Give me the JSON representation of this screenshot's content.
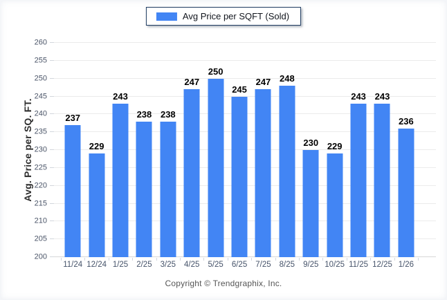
{
  "legend": {
    "label": "Avg Price per SQFT (Sold)",
    "swatch_color": "#4285F4"
  },
  "y_axis": {
    "title": "Avg. Price per SQ. FT.",
    "tick_labels": [
      "200",
      "205",
      "210",
      "215",
      "220",
      "225",
      "230",
      "235",
      "240",
      "245",
      "250",
      "255",
      "260"
    ]
  },
  "footer": {
    "copyright": "Copyright © Trendgraphix, Inc."
  },
  "colors": {
    "bar": "#4285F4",
    "gridline": "#ebebeb",
    "baseline": "#d6d6d6",
    "axis_text": "#46536a",
    "value_label": "#000000",
    "legend_border": "#1d3a5f"
  },
  "chart_data": {
    "type": "bar",
    "title": "Avg Price per SQFT (Sold)",
    "categories": [
      "11/24",
      "12/24",
      "1/25",
      "2/25",
      "3/25",
      "4/25",
      "5/25",
      "6/25",
      "7/25",
      "8/25",
      "9/25",
      "10/25",
      "11/25",
      "12/25",
      "1/26"
    ],
    "series": [
      {
        "name": "Avg Price per SQFT (Sold)",
        "values": [
          237,
          229,
          243,
          238,
          238,
          247,
          250,
          245,
          247,
          248,
          230,
          229,
          243,
          243,
          236
        ]
      }
    ],
    "xlabel": "",
    "ylabel": "Avg. Price per SQ. FT.",
    "ylim": [
      200,
      260
    ],
    "ytick_step": 5,
    "grid": "horizontal",
    "legend_position": "top-center",
    "bar_color": "#4285F4",
    "value_labels_shown": true
  }
}
